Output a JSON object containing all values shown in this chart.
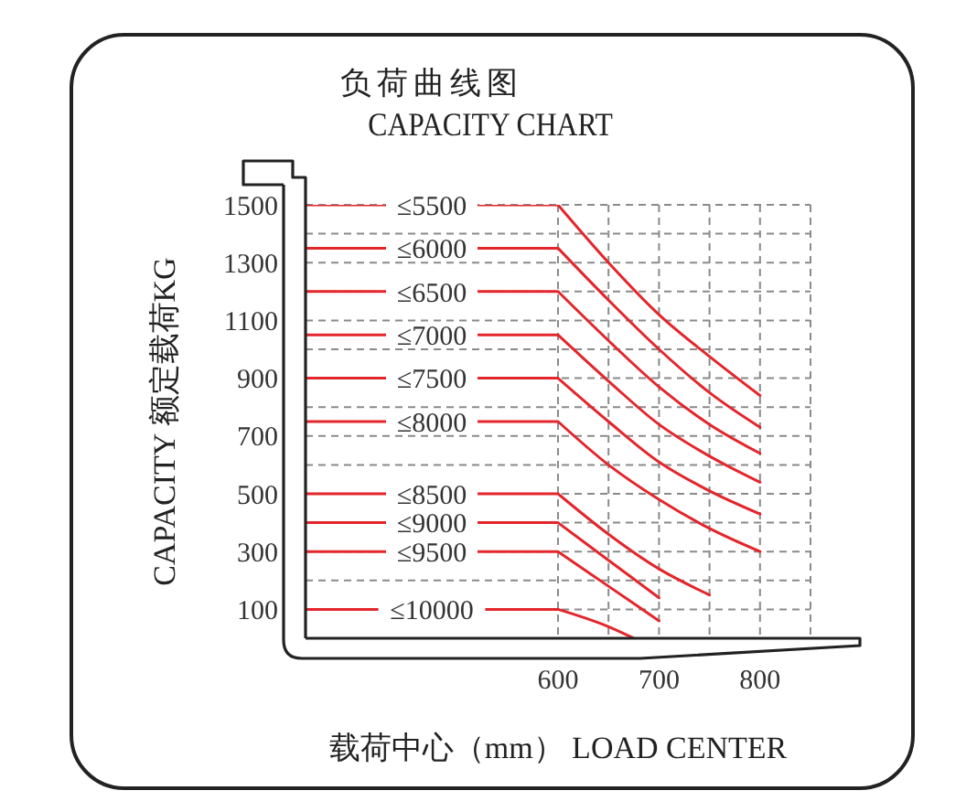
{
  "chart_data": {
    "type": "line",
    "title": "负荷曲线图",
    "subtitle": "CAPACITY CHART",
    "xlabel": "载荷中心（mm） LOAD CENTER",
    "ylabel": "CAPACITY 额定载荷KG",
    "xlim": [
      350,
      850
    ],
    "xticks": [
      600,
      {
        "value": 650,
        "label": null
      },
      700,
      {
        "value": 750,
        "label": null
      },
      800,
      {
        "value": 850,
        "label": null
      }
    ],
    "ylim": [
      0,
      1500
    ],
    "yticks": [
      100,
      {
        "value": 200,
        "label": null
      },
      300,
      {
        "value": 400,
        "label": null
      },
      500,
      {
        "value": 600,
        "label": null
      },
      700,
      {
        "value": 800,
        "label": null
      },
      900,
      {
        "value": 1000,
        "label": null
      },
      1100,
      {
        "value": 1200,
        "label": null
      },
      1300,
      {
        "value": 1400,
        "label": null
      },
      1500
    ],
    "grid": true,
    "marker": "none",
    "series": [
      {
        "name": "≤5500",
        "color": "#e3262b",
        "x": [
          350,
          600,
          650,
          700,
          750,
          800
        ],
        "values": [
          1500,
          1500,
          1300,
          1120,
          975,
          840
        ]
      },
      {
        "name": "≤6000",
        "color": "#e3262b",
        "x": [
          350,
          600,
          650,
          700,
          750,
          800
        ],
        "values": [
          1350,
          1350,
          1170,
          1000,
          850,
          730
        ]
      },
      {
        "name": "≤6500",
        "color": "#e3262b",
        "x": [
          350,
          600,
          650,
          700,
          750,
          800
        ],
        "values": [
          1200,
          1200,
          1030,
          870,
          740,
          640
        ]
      },
      {
        "name": "≤7000",
        "color": "#e3262b",
        "x": [
          350,
          600,
          650,
          700,
          750,
          800
        ],
        "values": [
          1050,
          1050,
          890,
          740,
          630,
          540
        ]
      },
      {
        "name": "≤7500",
        "color": "#e3262b",
        "x": [
          350,
          600,
          650,
          700,
          750,
          800
        ],
        "values": [
          900,
          900,
          750,
          610,
          510,
          430
        ]
      },
      {
        "name": "≤8000",
        "color": "#e3262b",
        "x": [
          350,
          600,
          650,
          700,
          750,
          800
        ],
        "values": [
          750,
          750,
          600,
          480,
          380,
          300
        ]
      },
      {
        "name": "≤8500",
        "color": "#e3262b",
        "x": [
          350,
          600,
          650,
          700,
          750
        ],
        "values": [
          500,
          500,
          360,
          240,
          150
        ]
      },
      {
        "name": "≤9000",
        "color": "#e3262b",
        "x": [
          350,
          600,
          650,
          700
        ],
        "values": [
          400,
          400,
          270,
          140
        ]
      },
      {
        "name": "≤9500",
        "color": "#e3262b",
        "x": [
          350,
          600,
          650,
          700
        ],
        "values": [
          300,
          300,
          180,
          60
        ]
      },
      {
        "name": "≤10000",
        "color": "#e3262b",
        "x": [
          350,
          600,
          650,
          675
        ],
        "values": [
          100,
          100,
          40,
          0
        ]
      }
    ]
  }
}
